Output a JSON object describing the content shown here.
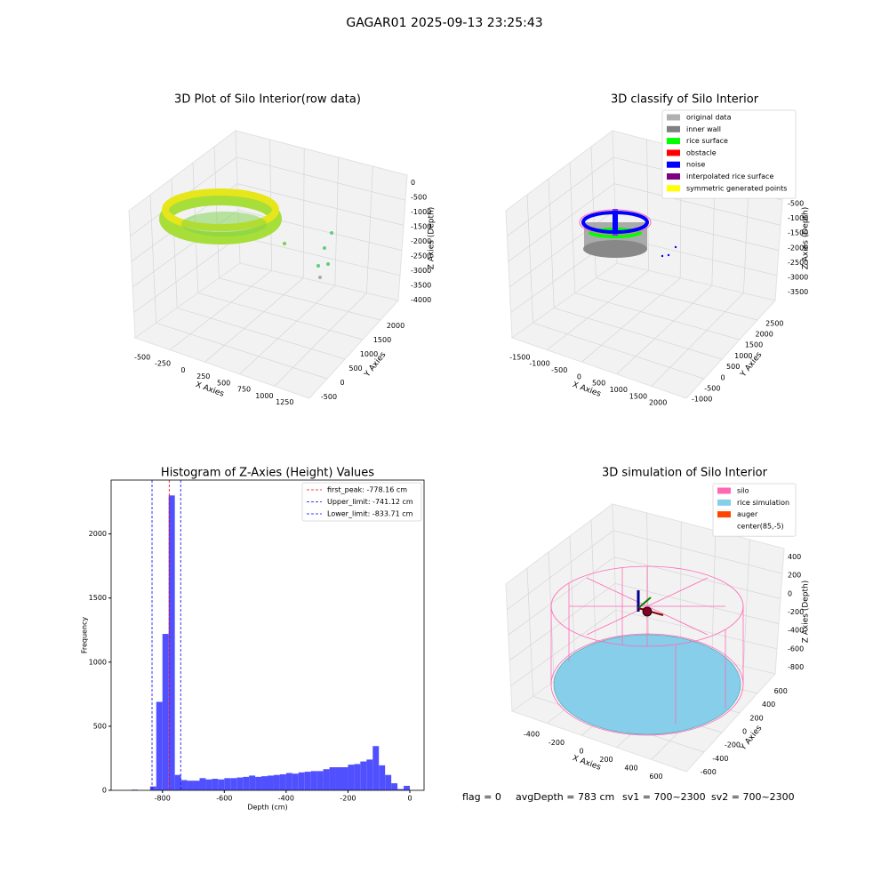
{
  "suptitle": "GAGAR01 2025-09-13 23:25:43",
  "footer": [
    "flag = 0",
    "avgDepth = 783 cm",
    "sv1 = 700~2300",
    "sv2 = 700~2300"
  ],
  "chart_data": [
    {
      "type": "scatter3d",
      "title": "3D Plot of Silo Interior(row data)",
      "xlabel": "X Axies",
      "ylabel": "Y Axies",
      "zlabel": "Z Axies (Depth)",
      "xlim": [
        -600,
        1400
      ],
      "xticks": [
        -500,
        -250,
        0,
        250,
        500,
        750,
        1000,
        1250
      ],
      "ylim": [
        -700,
        2200
      ],
      "yticks": [
        -500,
        0,
        500,
        1000,
        1500,
        2000
      ],
      "zlim": [
        -4100,
        100
      ],
      "zticks": [
        0,
        -500,
        -1000,
        -1500,
        -2000,
        -2500,
        -3000,
        -3500,
        -4000
      ]
    },
    {
      "type": "scatter3d",
      "title": "3D classify of Silo Interior",
      "xlabel": "X Axies",
      "ylabel": "Y Axies",
      "zlabel": "Z Axies (Depth)",
      "xlim": [
        -1700,
        2200
      ],
      "xticks": [
        -1500,
        -1000,
        -500,
        0,
        500,
        1000,
        1500,
        2000
      ],
      "ylim": [
        -1200,
        2700
      ],
      "yticks": [
        -1000,
        -500,
        0,
        500,
        1000,
        1500,
        2000,
        2500
      ],
      "zlim": [
        -3700,
        200
      ],
      "zticks": [
        0,
        -500,
        -1000,
        -1500,
        -2000,
        -2500,
        -3000,
        -3500
      ],
      "legend": "upper right",
      "series": [
        {
          "name": "original data",
          "color": "#b0b0b0"
        },
        {
          "name": "inner wall",
          "color": "#808080"
        },
        {
          "name": "rice surface",
          "color": "#00ff00"
        },
        {
          "name": "obstacle",
          "color": "#ff0000"
        },
        {
          "name": "noise",
          "color": "#0000ff"
        },
        {
          "name": "interpolated rice surface",
          "color": "#800080"
        },
        {
          "name": "symmetric generated points",
          "color": "#ffff00"
        }
      ]
    },
    {
      "type": "histogram",
      "title": "Histogram of Z-Axies (Height) Values",
      "xlabel": "Depth (cm)",
      "ylabel": "Frequency",
      "color": "#5050ff",
      "bins": [
        -920,
        -900,
        -880,
        -860,
        -840,
        -820,
        -800,
        -780,
        -760,
        -740,
        -720,
        -700,
        -680,
        -660,
        -640,
        -620,
        -600,
        -580,
        -560,
        -540,
        -520,
        -500,
        -480,
        -460,
        -440,
        -420,
        -400,
        -380,
        -360,
        -340,
        -320,
        -300,
        -280,
        -260,
        -240,
        -220,
        -200,
        -180,
        -160,
        -140,
        -120,
        -100,
        -80,
        -60,
        -40,
        -20,
        0
      ],
      "values": [
        0,
        5,
        0,
        0,
        30,
        690,
        1220,
        2300,
        120,
        80,
        75,
        75,
        95,
        85,
        90,
        85,
        95,
        95,
        100,
        105,
        115,
        105,
        110,
        115,
        120,
        125,
        135,
        130,
        140,
        145,
        150,
        150,
        165,
        180,
        180,
        180,
        200,
        205,
        225,
        240,
        345,
        195,
        120,
        55,
        10,
        35
      ],
      "xlim": [
        -966,
        46
      ],
      "xticks": [
        -800,
        -600,
        -400,
        -200,
        0
      ],
      "ylim": [
        0,
        2420
      ],
      "yticks": [
        0,
        500,
        1000,
        1500,
        2000
      ],
      "legend": "upper right",
      "lines": [
        {
          "value": -778.16,
          "label": "first_peak: -778.16 cm",
          "color": "#ff0000"
        },
        {
          "value": -741.12,
          "label": "Upper_limit: -741.12 cm",
          "color": "#0000ff"
        },
        {
          "value": -833.71,
          "label": "Lower_limit: -833.71 cm",
          "color": "#0000ff"
        }
      ]
    },
    {
      "type": "scatter3d",
      "title": "3D simulation of Silo Interior",
      "xlabel": "X Axies",
      "ylabel": "Y Axies",
      "zlabel": "Z Axies (Depth)",
      "xlim": [
        -650,
        700
      ],
      "xticks": [
        -400,
        -200,
        0,
        200,
        400,
        600
      ],
      "ylim": [
        -700,
        700
      ],
      "yticks": [
        -600,
        -400,
        -200,
        0,
        200,
        400,
        600
      ],
      "zlim": [
        -900,
        500
      ],
      "zticks": [
        400,
        200,
        0,
        -200,
        -400,
        -600,
        -800
      ],
      "legend": "upper right",
      "series": [
        {
          "name": "silo",
          "color": "#ff69b4"
        },
        {
          "name": "rice simulation",
          "color": "#87ceeb"
        },
        {
          "name": "auger",
          "color": "#ff4500"
        },
        {
          "name": "center(85,-5)",
          "color": "#ffffff"
        }
      ]
    }
  ]
}
